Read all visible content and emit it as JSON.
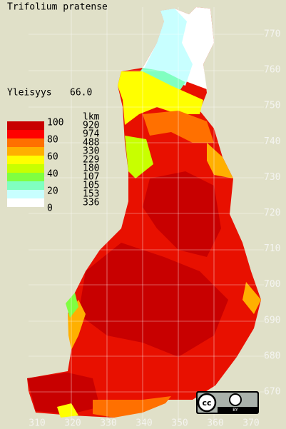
{
  "title": "Trifolium pratense",
  "frequency": {
    "label": "Yleisyys",
    "value": "66.0"
  },
  "legend": {
    "scale_labels": [
      "100",
      "80",
      "60",
      "40",
      "20",
      "0"
    ],
    "count_header": "lkm",
    "counts": [
      920,
      974,
      488,
      330,
      229,
      180,
      107,
      105,
      153,
      336
    ],
    "colors": [
      "#c80000",
      "#ff0000",
      "#ff7000",
      "#ffb000",
      "#ffff00",
      "#c8ff00",
      "#80ff40",
      "#80ffc0",
      "#c8ffff",
      "#ffffff"
    ]
  },
  "axes": {
    "y_labels": [
      "770",
      "760",
      "750",
      "740",
      "730",
      "720",
      "710",
      "700",
      "690",
      "680",
      "670"
    ],
    "x_labels": [
      "310",
      "320",
      "330",
      "340",
      "350",
      "360",
      "370"
    ]
  },
  "badge": {
    "cc": "cc",
    "by": "BY"
  }
}
